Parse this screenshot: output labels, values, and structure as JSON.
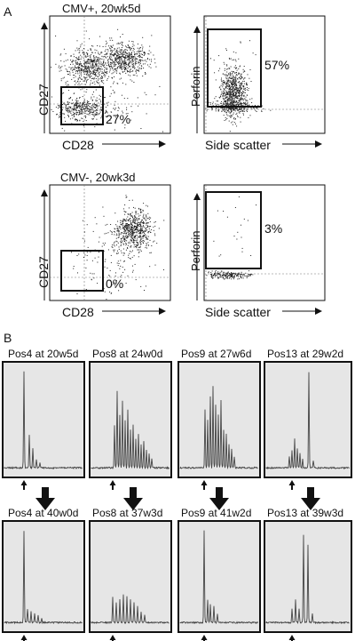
{
  "panel_a": {
    "label": "A",
    "rows": [
      {
        "title": "CMV+, 20wk5d",
        "left_plot": {
          "ylabel": "CD27",
          "xlabel": "CD28",
          "gate_percent": "27%"
        },
        "right_plot": {
          "ylabel": "Perforin",
          "xlabel": "Side scatter",
          "gate_percent": "57%"
        }
      },
      {
        "title": "CMV-, 20wk3d",
        "left_plot": {
          "ylabel": "CD27",
          "xlabel": "CD28",
          "gate_percent": "0%"
        },
        "right_plot": {
          "ylabel": "Perforin",
          "xlabel": "Side scatter",
          "gate_percent": "3%"
        }
      }
    ]
  },
  "panel_b": {
    "label": "B",
    "top_row": [
      "Pos4 at 20w5d",
      "Pos8 at 24w0d",
      "Pos9 at 27w6d",
      "Pos13 at 29w2d"
    ],
    "bottom_row": [
      "Pos4 at 40w0d",
      "Pos8 at 37w3d",
      "Pos9 at 41w2d",
      "Pos13 at 39w3d"
    ]
  },
  "colors": {
    "dots": "#222222",
    "gate": "#111111",
    "spectra_bg": "#e6e6e6",
    "spectra_line": "#444444"
  }
}
